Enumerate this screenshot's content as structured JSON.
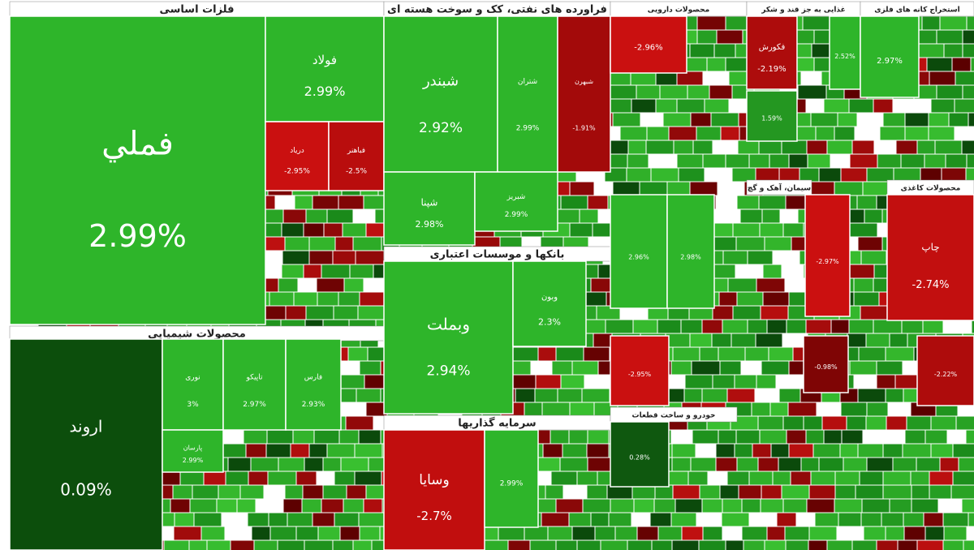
{
  "chart_data": {
    "type": "treemap",
    "sectors": [
      {
        "name": "فلزات اساسی",
        "tiles": [
          {
            "label": "فملي",
            "value": 2.99,
            "value_label": "2.99%"
          },
          {
            "label": "فولاد",
            "value": 2.99,
            "value_label": "2.99%"
          },
          {
            "label": "دریاد",
            "value": -2.95,
            "value_label": "-2.95%"
          },
          {
            "label": "فباهنر",
            "value": -2.5,
            "value_label": "-2.5%"
          }
        ]
      },
      {
        "name": "محصولات شیمیایی",
        "tiles": [
          {
            "label": "اروند",
            "value": 0.09,
            "value_label": "0.09%"
          },
          {
            "label": "نوری",
            "value": 3,
            "value_label": "3%"
          },
          {
            "label": "تاپیکو",
            "value": 2.97,
            "value_label": "2.97%"
          },
          {
            "label": "فارس",
            "value": 2.93,
            "value_label": "2.93%"
          },
          {
            "label": "پارسان",
            "value": 2.99,
            "value_label": "2.99%"
          }
        ]
      },
      {
        "name": "فراورده های نفتی، کک و سوخت هسته ای",
        "tiles": [
          {
            "label": "شبندر",
            "value": 2.92,
            "value_label": "2.92%"
          },
          {
            "label": "شتران",
            "value": 2.99,
            "value_label": "2.99%"
          },
          {
            "label": "شبهرن",
            "value": -1.91,
            "value_label": "-1.91%"
          },
          {
            "label": "شپنا",
            "value": 2.98,
            "value_label": "2.98%"
          },
          {
            "label": "شبریز",
            "value": 2.99,
            "value_label": "2.99%"
          }
        ]
      },
      {
        "name": "بانکها و موسسات اعتباری",
        "tiles": [
          {
            "label": "وبملت",
            "value": 2.94,
            "value_label": "2.94%"
          },
          {
            "label": "وبون",
            "value": 2.3,
            "value_label": "2.3%"
          }
        ]
      },
      {
        "name": "سرمایه گذاریها",
        "tiles": [
          {
            "label": "وسایا",
            "value": -2.7,
            "value_label": "-2.7%"
          },
          {
            "value": 2.99,
            "value_label": "2.99%"
          }
        ]
      },
      {
        "name": "محصولات دارویی",
        "tiles": [
          {
            "value": -2.96,
            "value_label": "-2.96%"
          }
        ]
      },
      {
        "name": "غذایی به جز قند و شکر",
        "tiles": [
          {
            "label": "فکورش",
            "value": -2.19,
            "value_label": "-2.19%"
          },
          {
            "value": 2.52,
            "value_label": "2.52%"
          },
          {
            "value": 1.59,
            "value_label": "1.59%"
          }
        ]
      },
      {
        "name": "استخراج کانه های فلزی",
        "tiles": [
          {
            "value": 2.97,
            "value_label": "2.97%"
          }
        ]
      },
      {
        "name": "محصولات کاغذی",
        "tiles": [
          {
            "label": "چاپ",
            "value": -2.74,
            "value_label": "-2.74%"
          }
        ]
      },
      {
        "name": "سیمان، آهک و گچ",
        "tiles": [
          {
            "value": 2.96,
            "value_label": "2.96%"
          },
          {
            "value": 2.98,
            "value_label": "2.98%"
          },
          {
            "value": -2.97,
            "value_label": "-2.97%"
          }
        ]
      },
      {
        "name": "خودرو و ساخت قطعات",
        "tiles": [
          {
            "value": -2.95,
            "value_label": "-2.95%"
          },
          {
            "value": 0.28,
            "value_label": "0.28%"
          },
          {
            "value": -0.98,
            "value_label": "-0.98%"
          },
          {
            "value": -2.22,
            "value_label": "-2.22%"
          }
        ]
      }
    ]
  }
}
